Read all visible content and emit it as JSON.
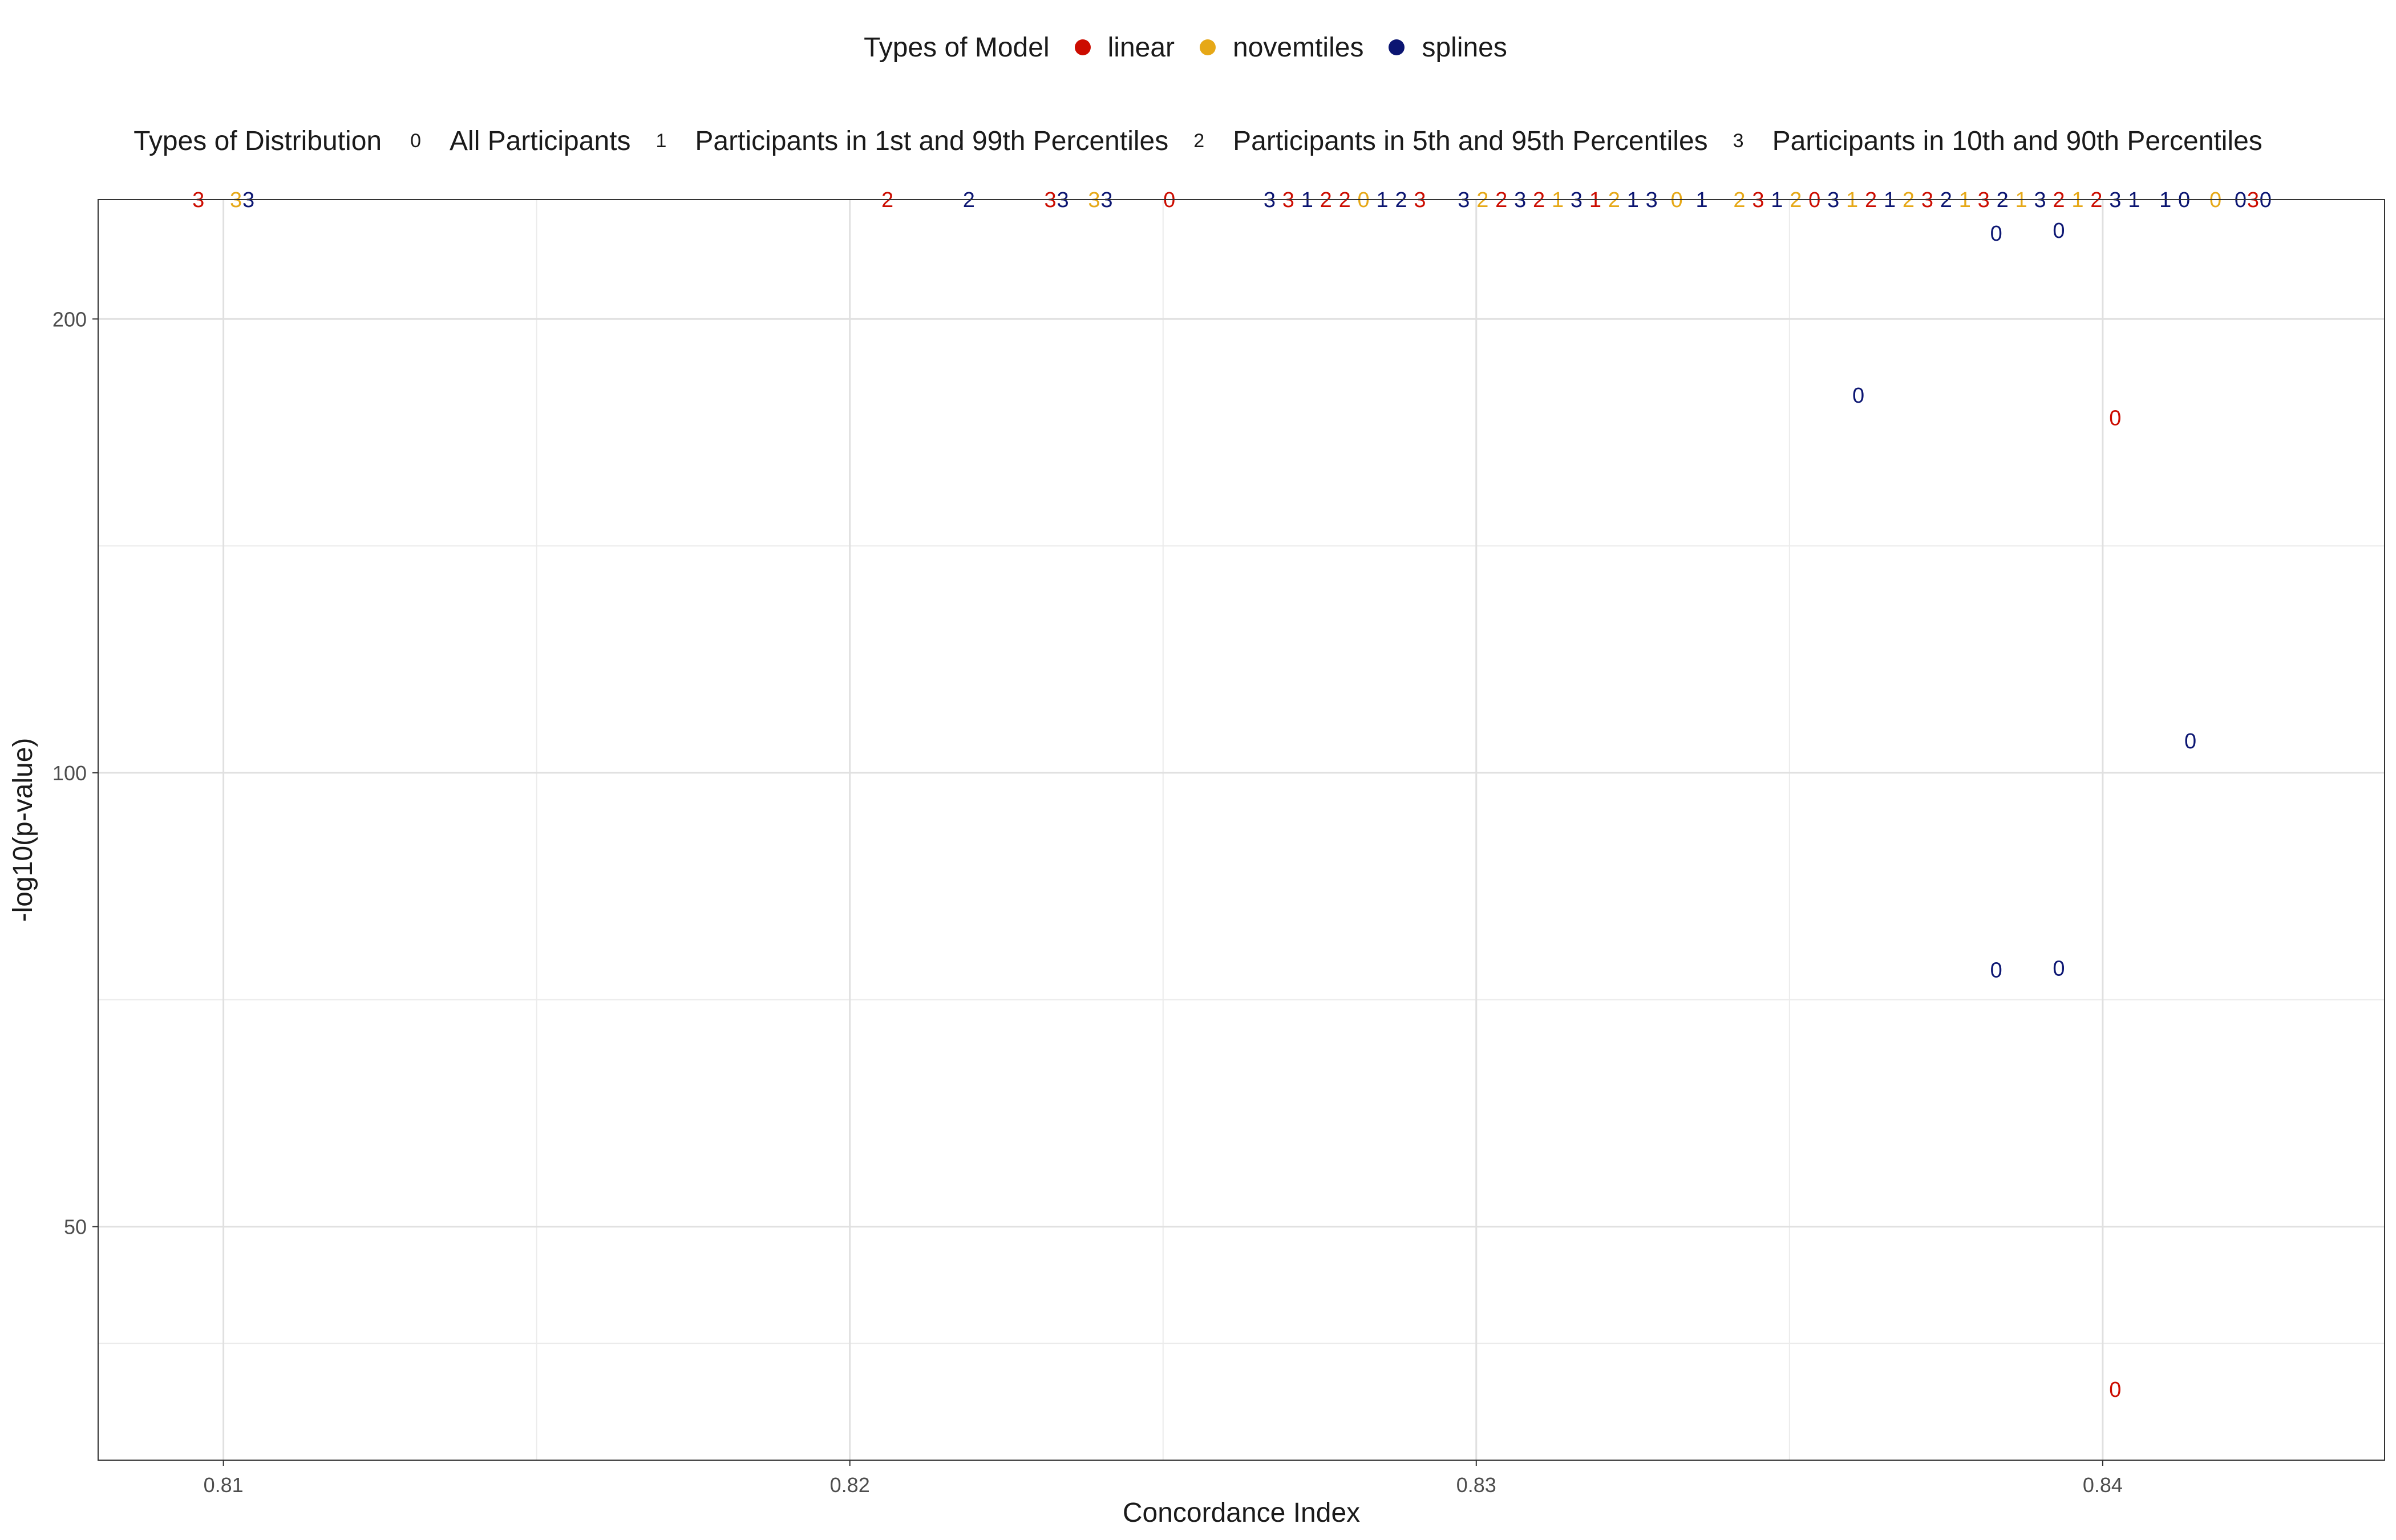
{
  "legends": {
    "model": {
      "title": "Types of Model",
      "items": [
        {
          "label": "linear",
          "color": "#cc0c00"
        },
        {
          "label": "novemtiles",
          "color": "#e6a817"
        },
        {
          "label": "splines",
          "color": "#0b1572"
        }
      ]
    },
    "distribution": {
      "title": "Types of Distribution",
      "items": [
        {
          "key": "0",
          "label": "All Participants"
        },
        {
          "key": "1",
          "label": "Participants in 1st and 99th Percentiles"
        },
        {
          "key": "2",
          "label": "Participants in 5th and 95th Percentiles"
        },
        {
          "key": "3",
          "label": "Participants in 10th and 90th Percentiles"
        }
      ]
    }
  },
  "chart_data": {
    "type": "scatter",
    "xlabel": "Concordance Index",
    "ylabel": "-log10(p-value)",
    "x_ticks": [
      "0.81",
      "0.82",
      "0.83",
      "0.84"
    ],
    "y_ticks": [
      "50",
      "100",
      "200"
    ],
    "y_scale": "log10",
    "xlim": [
      0.808,
      0.8445
    ],
    "ylim": [
      35,
      240
    ],
    "grid": true,
    "colors": {
      "linear": "#cc0c00",
      "novemtiles": "#e6a817",
      "splines": "#0b1572"
    },
    "points": [
      {
        "x": 0.8096,
        "y": 240,
        "label": "3",
        "model": "linear"
      },
      {
        "x": 0.8102,
        "y": 240,
        "label": "3",
        "model": "novemtiles"
      },
      {
        "x": 0.8104,
        "y": 240,
        "label": "3",
        "model": "splines"
      },
      {
        "x": 0.8206,
        "y": 240,
        "label": "2",
        "model": "linear"
      },
      {
        "x": 0.8219,
        "y": 240,
        "label": "2",
        "model": "splines"
      },
      {
        "x": 0.8232,
        "y": 240,
        "label": "3",
        "model": "linear"
      },
      {
        "x": 0.8234,
        "y": 240,
        "label": "3",
        "model": "splines"
      },
      {
        "x": 0.8239,
        "y": 240,
        "label": "3",
        "model": "novemtiles"
      },
      {
        "x": 0.8241,
        "y": 240,
        "label": "3",
        "model": "splines"
      },
      {
        "x": 0.8251,
        "y": 240,
        "label": "0",
        "model": "linear"
      },
      {
        "x": 0.8267,
        "y": 240,
        "label": "3",
        "model": "splines"
      },
      {
        "x": 0.827,
        "y": 240,
        "label": "3",
        "model": "linear"
      },
      {
        "x": 0.8273,
        "y": 240,
        "label": "1",
        "model": "splines"
      },
      {
        "x": 0.8276,
        "y": 240,
        "label": "2",
        "model": "linear"
      },
      {
        "x": 0.8279,
        "y": 240,
        "label": "2",
        "model": "linear"
      },
      {
        "x": 0.8282,
        "y": 240,
        "label": "0",
        "model": "novemtiles"
      },
      {
        "x": 0.8285,
        "y": 240,
        "label": "1",
        "model": "splines"
      },
      {
        "x": 0.8288,
        "y": 240,
        "label": "2",
        "model": "splines"
      },
      {
        "x": 0.8291,
        "y": 240,
        "label": "3",
        "model": "linear"
      },
      {
        "x": 0.8298,
        "y": 240,
        "label": "3",
        "model": "splines"
      },
      {
        "x": 0.8301,
        "y": 240,
        "label": "2",
        "model": "novemtiles"
      },
      {
        "x": 0.8304,
        "y": 240,
        "label": "2",
        "model": "linear"
      },
      {
        "x": 0.8307,
        "y": 240,
        "label": "3",
        "model": "splines"
      },
      {
        "x": 0.831,
        "y": 240,
        "label": "2",
        "model": "linear"
      },
      {
        "x": 0.8313,
        "y": 240,
        "label": "1",
        "model": "novemtiles"
      },
      {
        "x": 0.8316,
        "y": 240,
        "label": "3",
        "model": "splines"
      },
      {
        "x": 0.8319,
        "y": 240,
        "label": "1",
        "model": "linear"
      },
      {
        "x": 0.8322,
        "y": 240,
        "label": "2",
        "model": "novemtiles"
      },
      {
        "x": 0.8325,
        "y": 240,
        "label": "1",
        "model": "splines"
      },
      {
        "x": 0.8328,
        "y": 240,
        "label": "3",
        "model": "splines"
      },
      {
        "x": 0.8332,
        "y": 240,
        "label": "0",
        "model": "novemtiles"
      },
      {
        "x": 0.8336,
        "y": 240,
        "label": "1",
        "model": "splines"
      },
      {
        "x": 0.8342,
        "y": 240,
        "label": "2",
        "model": "novemtiles"
      },
      {
        "x": 0.8345,
        "y": 240,
        "label": "3",
        "model": "linear"
      },
      {
        "x": 0.8348,
        "y": 240,
        "label": "1",
        "model": "splines"
      },
      {
        "x": 0.8351,
        "y": 240,
        "label": "2",
        "model": "novemtiles"
      },
      {
        "x": 0.8354,
        "y": 240,
        "label": "0",
        "model": "linear"
      },
      {
        "x": 0.8357,
        "y": 240,
        "label": "3",
        "model": "splines"
      },
      {
        "x": 0.836,
        "y": 240,
        "label": "1",
        "model": "novemtiles"
      },
      {
        "x": 0.8363,
        "y": 240,
        "label": "2",
        "model": "linear"
      },
      {
        "x": 0.8366,
        "y": 240,
        "label": "1",
        "model": "splines"
      },
      {
        "x": 0.8369,
        "y": 240,
        "label": "2",
        "model": "novemtiles"
      },
      {
        "x": 0.8372,
        "y": 240,
        "label": "3",
        "model": "linear"
      },
      {
        "x": 0.8375,
        "y": 240,
        "label": "2",
        "model": "splines"
      },
      {
        "x": 0.8378,
        "y": 240,
        "label": "1",
        "model": "novemtiles"
      },
      {
        "x": 0.8381,
        "y": 240,
        "label": "3",
        "model": "linear"
      },
      {
        "x": 0.8384,
        "y": 240,
        "label": "2",
        "model": "splines"
      },
      {
        "x": 0.8387,
        "y": 240,
        "label": "1",
        "model": "novemtiles"
      },
      {
        "x": 0.839,
        "y": 240,
        "label": "3",
        "model": "splines"
      },
      {
        "x": 0.8393,
        "y": 240,
        "label": "2",
        "model": "linear"
      },
      {
        "x": 0.8396,
        "y": 240,
        "label": "1",
        "model": "novemtiles"
      },
      {
        "x": 0.8399,
        "y": 240,
        "label": "2",
        "model": "linear"
      },
      {
        "x": 0.8402,
        "y": 240,
        "label": "3",
        "model": "splines"
      },
      {
        "x": 0.8405,
        "y": 240,
        "label": "1",
        "model": "splines"
      },
      {
        "x": 0.841,
        "y": 240,
        "label": "1",
        "model": "splines"
      },
      {
        "x": 0.8413,
        "y": 240,
        "label": "0",
        "model": "splines"
      },
      {
        "x": 0.8418,
        "y": 240,
        "label": "0",
        "model": "novemtiles"
      },
      {
        "x": 0.8422,
        "y": 240,
        "label": "0",
        "model": "splines"
      },
      {
        "x": 0.8424,
        "y": 240,
        "label": "3",
        "model": "linear"
      },
      {
        "x": 0.8426,
        "y": 240,
        "label": "0",
        "model": "splines"
      },
      {
        "x": 0.8383,
        "y": 228,
        "label": "0",
        "model": "splines"
      },
      {
        "x": 0.8393,
        "y": 229,
        "label": "0",
        "model": "splines"
      },
      {
        "x": 0.8361,
        "y": 178,
        "label": "0",
        "model": "splines"
      },
      {
        "x": 0.8402,
        "y": 172,
        "label": "0",
        "model": "linear"
      },
      {
        "x": 0.8414,
        "y": 105,
        "label": "0",
        "model": "splines"
      },
      {
        "x": 0.8383,
        "y": 74,
        "label": "0",
        "model": "splines"
      },
      {
        "x": 0.8393,
        "y": 74.2,
        "label": "0",
        "model": "splines"
      },
      {
        "x": 0.8402,
        "y": 39,
        "label": "0",
        "model": "linear"
      }
    ]
  }
}
